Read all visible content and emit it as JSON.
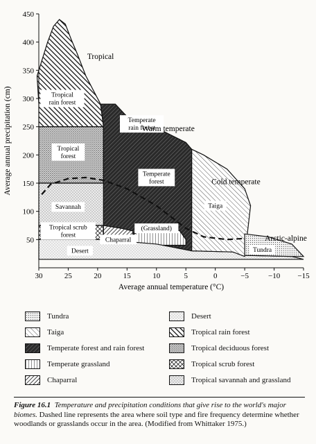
{
  "chart_data": {
    "type": "area",
    "title": "",
    "xlabel": "Average annual temperature (°C)",
    "ylabel": "Average annual precipitation (cm)",
    "xlim": [
      30,
      -15
    ],
    "ylim": [
      0,
      450
    ],
    "x_ticks": [
      30,
      25,
      20,
      15,
      10,
      5,
      0,
      -5,
      -10,
      -15
    ],
    "x_tick_labels": [
      "30",
      "25",
      "20",
      "15",
      "10",
      "5",
      "0",
      "−5",
      "−10",
      "−15"
    ],
    "y_ticks": [
      50,
      100,
      150,
      200,
      250,
      300,
      350,
      400,
      450
    ],
    "grid": false,
    "climate_regions": [
      {
        "name": "Tropical",
        "label_at": [
          19.5,
          370
        ]
      },
      {
        "name": "Warm temperate",
        "label_at": [
          8,
          242
        ]
      },
      {
        "name": "Cold temperate",
        "label_at": [
          -3.5,
          148
        ]
      },
      {
        "name": "Arctic-alpine",
        "label_at": [
          -12,
          48
        ]
      }
    ],
    "biomes": [
      {
        "name": "Tropical rain forest",
        "pattern": "rainforest",
        "label": "Tropical rain forest",
        "outline": [
          [
            30,
            250
          ],
          [
            30,
            290
          ],
          [
            30.3,
            340
          ],
          [
            28.5,
            400
          ],
          [
            27.5,
            428
          ],
          [
            26.5,
            440
          ],
          [
            25.5,
            432
          ],
          [
            24.5,
            405
          ],
          [
            23.5,
            380
          ],
          [
            22,
            340
          ],
          [
            19.5,
            290
          ],
          [
            19,
            250
          ],
          [
            22,
            250
          ],
          [
            30,
            250
          ]
        ],
        "label_at": [
          26,
          300
        ]
      },
      {
        "name": "Tropical deciduous forest",
        "pattern": "deciduous",
        "label": "Tropical forest",
        "outline": [
          [
            30,
            250
          ],
          [
            22,
            250
          ],
          [
            19,
            250
          ],
          [
            19,
            150
          ],
          [
            30,
            150
          ]
        ],
        "label_at": [
          25,
          205
        ]
      },
      {
        "name": "Tropical savannah and grassland",
        "pattern": "savannah",
        "label": "Savannah",
        "outline": [
          [
            30,
            150
          ],
          [
            19,
            150
          ],
          [
            19,
            75
          ],
          [
            30,
            75
          ]
        ],
        "label_at": [
          25,
          108
        ]
      },
      {
        "name": "Tropical scrub forest",
        "pattern": "scrub",
        "label": "Tropical scrub forest",
        "outline": [
          [
            30,
            75
          ],
          [
            19,
            75
          ],
          [
            19,
            50
          ],
          [
            30,
            50
          ]
        ],
        "label_at": [
          25,
          65
        ]
      },
      {
        "name": "Temperate forest and rain forest",
        "pattern": "temperate",
        "label": "Temperate rain forest",
        "outline": [
          [
            19,
            250
          ],
          [
            19.5,
            290
          ],
          [
            17,
            290
          ],
          [
            15,
            268
          ],
          [
            10,
            248
          ],
          [
            5,
            222
          ],
          [
            4,
            210
          ],
          [
            4,
            30
          ],
          [
            19,
            30
          ]
        ],
        "label_at": [
          12.5,
          255
        ]
      },
      {
        "name": "Temperate grassland",
        "pattern": "grassland",
        "label": "(Grassland)",
        "outline": [
          [
            15,
            40
          ],
          [
            14,
            58
          ],
          [
            12,
            72
          ],
          [
            10,
            78
          ],
          [
            8,
            75
          ],
          [
            6,
            65
          ],
          [
            5,
            50
          ],
          [
            5,
            40
          ]
        ],
        "label_at": [
          10,
          70
        ]
      },
      {
        "name": "Chaparral",
        "pattern": "chaparral",
        "label": "Chaparral",
        "outline": [
          [
            19,
            75
          ],
          [
            16,
            70
          ],
          [
            14,
            65
          ],
          [
            14,
            40
          ],
          [
            19,
            40
          ]
        ],
        "label_at": [
          16.5,
          50
        ]
      },
      {
        "name": "Desert",
        "pattern": "desert",
        "label": "Desert",
        "outline": [
          [
            30,
            50
          ],
          [
            19,
            50
          ],
          [
            10,
            42
          ],
          [
            4,
            30
          ],
          [
            -3,
            28
          ],
          [
            -5,
            22
          ],
          [
            -13,
            20
          ],
          [
            -15,
            15
          ],
          [
            30,
            15
          ]
        ],
        "label_at": [
          23,
          30
        ]
      },
      {
        "name": "Taiga",
        "pattern": "taiga",
        "label": "Taiga",
        "outline": [
          [
            4,
            210
          ],
          [
            2,
            200
          ],
          [
            -2,
            175
          ],
          [
            -5,
            140
          ],
          [
            -6,
            110
          ],
          [
            -5,
            20
          ],
          [
            -3,
            28
          ],
          [
            4,
            30
          ]
        ],
        "label_at": [
          0,
          110
        ]
      },
      {
        "name": "Tundra",
        "pattern": "tundra",
        "label": "Tundra",
        "outline": [
          [
            -5,
            60
          ],
          [
            -9,
            55
          ],
          [
            -13,
            42
          ],
          [
            -15,
            20
          ],
          [
            -13,
            20
          ],
          [
            -5,
            22
          ]
        ],
        "label_at": [
          -8,
          32
        ]
      }
    ],
    "dashed_boundary": {
      "description_from_caption": true,
      "points": [
        [
          29.5,
          130
        ],
        [
          28,
          148
        ],
        [
          25,
          158
        ],
        [
          22,
          160
        ],
        [
          19,
          155
        ],
        [
          15,
          140
        ],
        [
          10,
          110
        ],
        [
          5,
          70
        ],
        [
          2,
          55
        ],
        [
          -2,
          50
        ],
        [
          -5,
          52
        ]
      ]
    },
    "label_texts": {
      "tropical_rain_forest": [
        "Tropical",
        "rain forest"
      ],
      "tropical_forest": [
        "Tropical",
        "forest"
      ],
      "temperate_rain_forest": [
        "Temperate",
        "rain forest"
      ],
      "temperate_forest": [
        "Temperate",
        "forest"
      ],
      "savannah": [
        "Savannah"
      ],
      "tropical_scrub": [
        "Tropical scrub",
        "forest"
      ],
      "grassland": [
        "(Grassland)"
      ],
      "chaparral": [
        "Chaparral"
      ],
      "desert": [
        "Desert"
      ],
      "taiga": [
        "Taiga"
      ],
      "tundra": [
        "Tundra"
      ]
    }
  },
  "legend": [
    {
      "label": "Tundra",
      "pattern": "tundra"
    },
    {
      "label": "Desert",
      "pattern": "desert"
    },
    {
      "label": "Taiga",
      "pattern": "taiga"
    },
    {
      "label": "Tropical rain forest",
      "pattern": "rainforest"
    },
    {
      "label": "Temperate forest and rain forest",
      "pattern": "temperate"
    },
    {
      "label": "Tropical deciduous forest",
      "pattern": "deciduous"
    },
    {
      "label": "Temperate grassland",
      "pattern": "grassland"
    },
    {
      "label": "Tropical scrub forest",
      "pattern": "scrub"
    },
    {
      "label": "Chaparral",
      "pattern": "chaparral"
    },
    {
      "label": "Tropical savannah and grassland",
      "pattern": "savannah"
    }
  ],
  "caption": {
    "label": "Figure 16.1",
    "text_italic": "Temperature and precipitation conditions that give rise to the world's major biomes.",
    "text_plain": "Dashed line represents the area where soil type and fire frequency determine whether woodlands or grasslands occur in the area. (Modified from Whittaker 1975.)"
  }
}
